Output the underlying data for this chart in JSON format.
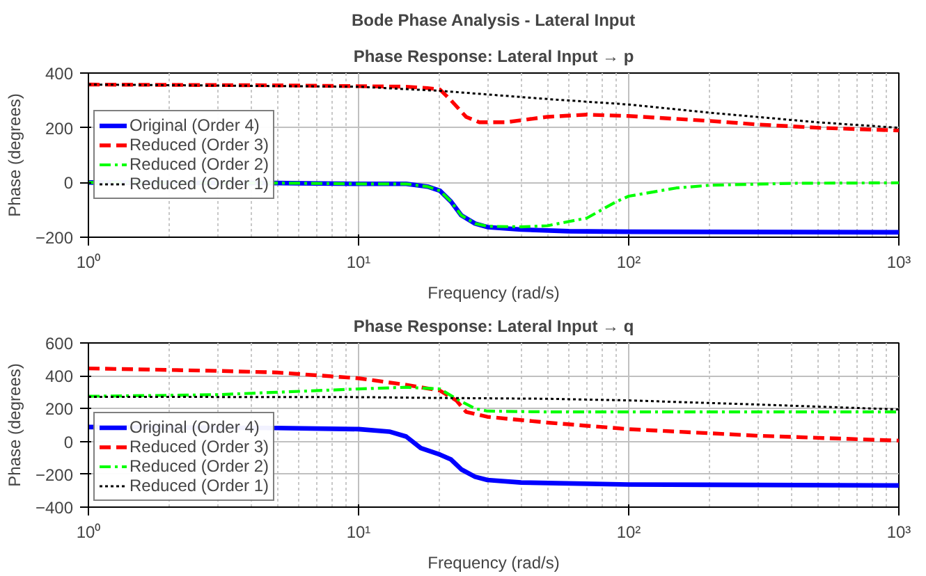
{
  "chart_data": [
    {
      "type": "line",
      "title": "Bode Phase Analysis - Lateral Input",
      "subtitle": "Phase Response: Lateral Input → p",
      "xlabel": "Frequency (rad/s)",
      "ylabel": "Phase (degrees)",
      "log": "x",
      "grid": true,
      "legend": "left",
      "xlim": [
        1,
        1000
      ],
      "xticks": [
        {
          "value": 1,
          "label": "10⁰"
        },
        {
          "value": 10,
          "label": "10¹"
        },
        {
          "value": 100,
          "label": "10²"
        },
        {
          "value": 1000,
          "label": "10³"
        }
      ],
      "ylim": [
        -200,
        400
      ],
      "yticks": [
        -200,
        0,
        200,
        400
      ],
      "series": [
        {
          "name": "Original (Order 4)",
          "color": "#0000ff",
          "line_style": "solid",
          "x": [
            1,
            5,
            10,
            15,
            18,
            20,
            22,
            24,
            27,
            30,
            40,
            60,
            100,
            1000
          ],
          "values": [
            0,
            -2,
            -5,
            -5,
            -15,
            -30,
            -70,
            -120,
            -150,
            -163,
            -172,
            -178,
            -180,
            -182
          ]
        },
        {
          "name": "Reduced (Order 3)",
          "color": "#ff0000",
          "line_style": "dashed",
          "x": [
            1,
            5,
            10,
            15,
            18,
            20,
            22,
            25,
            28,
            35,
            50,
            70,
            100,
            200,
            300,
            500,
            1000
          ],
          "values": [
            358,
            355,
            352,
            350,
            345,
            340,
            300,
            240,
            220,
            220,
            240,
            248,
            243,
            225,
            212,
            200,
            190
          ]
        },
        {
          "name": "Reduced (Order 2)",
          "color": "#00ff00",
          "line_style": "dashdot",
          "x": [
            1,
            5,
            10,
            15,
            18,
            20,
            22,
            24,
            27,
            30,
            40,
            50,
            70,
            90,
            100,
            150,
            200,
            400,
            1000
          ],
          "values": [
            0,
            -2,
            -5,
            -5,
            -15,
            -30,
            -70,
            -120,
            -150,
            -160,
            -162,
            -158,
            -130,
            -70,
            -50,
            -20,
            -10,
            -3,
            -1
          ]
        },
        {
          "name": "Reduced (Order 1)",
          "color": "#000000",
          "line_style": "dotted",
          "x": [
            1,
            10,
            20,
            50,
            100,
            200,
            500,
            1000
          ],
          "values": [
            358,
            350,
            335,
            305,
            285,
            255,
            220,
            200
          ]
        }
      ]
    },
    {
      "type": "line",
      "title": "Phase Response: Lateral Input → q",
      "xlabel": "Frequency (rad/s)",
      "ylabel": "Phase (degrees)",
      "log": "x",
      "grid": true,
      "legend": "bottom left",
      "xlim": [
        1,
        1000
      ],
      "xticks": [
        {
          "value": 1,
          "label": "10⁰"
        },
        {
          "value": 10,
          "label": "10¹"
        },
        {
          "value": 100,
          "label": "10²"
        },
        {
          "value": 1000,
          "label": "10³"
        }
      ],
      "ylim": [
        -400,
        600
      ],
      "yticks": [
        -400,
        -200,
        0,
        200,
        400,
        600
      ],
      "series": [
        {
          "name": "Original (Order 4)",
          "color": "#0000ff",
          "line_style": "solid",
          "x": [
            1,
            5,
            10,
            13,
            15,
            17,
            20,
            22,
            24,
            27,
            30,
            40,
            100,
            1000
          ],
          "values": [
            88,
            82,
            75,
            60,
            30,
            -40,
            -80,
            -110,
            -170,
            -215,
            -235,
            -250,
            -262,
            -268
          ]
        },
        {
          "name": "Reduced (Order 3)",
          "color": "#ff0000",
          "line_style": "dashed",
          "x": [
            1,
            3,
            5,
            10,
            15,
            20,
            23,
            25,
            30,
            50,
            100,
            300,
            1000
          ],
          "values": [
            445,
            430,
            420,
            385,
            345,
            310,
            250,
            180,
            150,
            115,
            75,
            35,
            5
          ]
        },
        {
          "name": "Reduced (Order 2)",
          "color": "#00ff00",
          "line_style": "dashdot",
          "x": [
            1,
            3,
            5,
            10,
            15,
            20,
            23,
            27,
            30,
            50,
            100,
            1000
          ],
          "values": [
            275,
            285,
            300,
            320,
            330,
            320,
            260,
            200,
            185,
            180,
            180,
            180
          ]
        },
        {
          "name": "Reduced (Order 1)",
          "color": "#000000",
          "line_style": "dotted",
          "x": [
            1,
            10,
            20,
            50,
            100,
            300,
            1000
          ],
          "values": [
            272,
            270,
            265,
            260,
            250,
            225,
            195
          ]
        }
      ]
    }
  ]
}
